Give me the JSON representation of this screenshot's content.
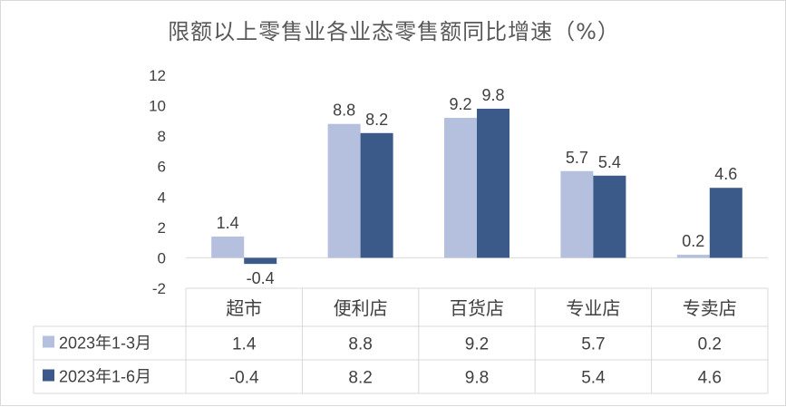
{
  "chart_data": {
    "type": "bar",
    "title": "限额以上零售业各业态零售额同比增速（%）",
    "categories": [
      "超市",
      "便利店",
      "百货店",
      "专业店",
      "专卖店"
    ],
    "series": [
      {
        "name": "2023年1-3月",
        "values": [
          1.4,
          8.8,
          9.2,
          5.7,
          0.2
        ],
        "labels": [
          "1.4",
          "8.8",
          "9.2",
          "5.7",
          "0.2"
        ],
        "color": "#b4c0dd"
      },
      {
        "name": "2023年1-6月",
        "values": [
          -0.4,
          8.2,
          9.8,
          5.4,
          4.6
        ],
        "labels": [
          "-0.4",
          "8.2",
          "9.8",
          "5.4",
          "4.6"
        ],
        "color": "#3b5a8a"
      }
    ],
    "ylim": [
      -2,
      12
    ],
    "yticks": [
      "-2",
      "0",
      "2",
      "4",
      "6",
      "8",
      "10",
      "12"
    ],
    "grid": false,
    "legend": "data-table"
  }
}
